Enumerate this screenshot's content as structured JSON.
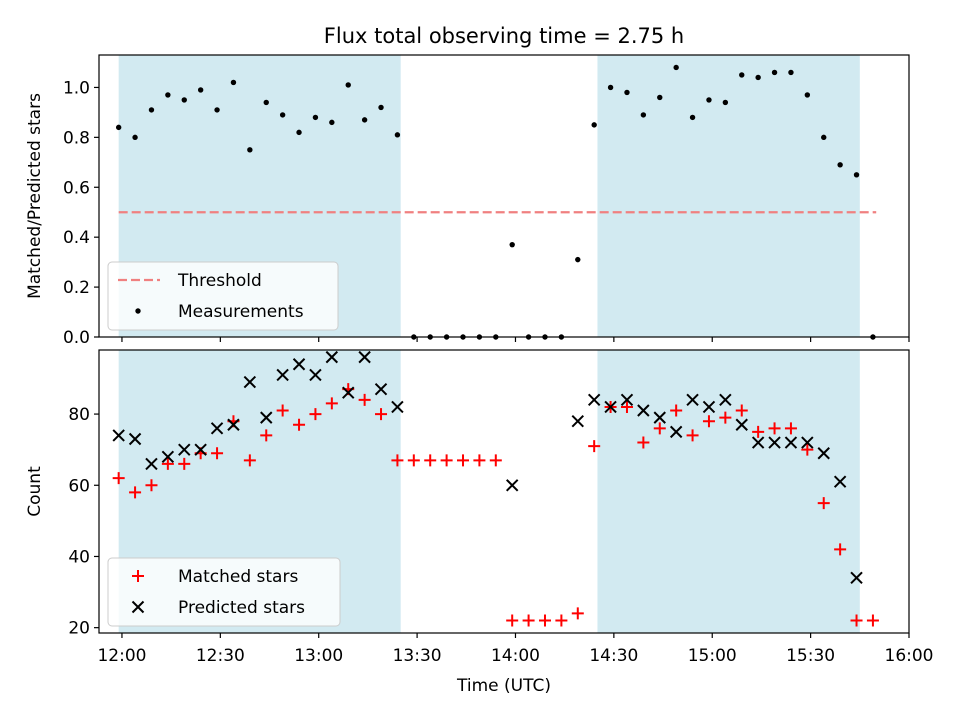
{
  "chart_data": {
    "title": "Flux total observing time = 2.75 h",
    "xlabel": "Time (UTC)",
    "x_ticks": [
      "12:00",
      "12:30",
      "13:00",
      "13:30",
      "14:00",
      "14:30",
      "15:00",
      "15:30",
      "16:00"
    ],
    "x_range": [
      "11:53",
      "16:00"
    ],
    "colors": {
      "shade": "#add8e6",
      "threshold": "#f08080",
      "measurement": "#000000",
      "matched": "#ff0000",
      "predicted": "#000000"
    },
    "shaded_intervals": [
      [
        "11:59",
        "13:25"
      ],
      [
        "14:25",
        "15:45"
      ]
    ],
    "top": {
      "type": "scatter",
      "ylabel": "Matched/Predicted stars",
      "ylim": [
        0,
        1.13
      ],
      "y_ticks": [
        "0.0",
        "0.2",
        "0.4",
        "0.6",
        "0.8",
        "1.0"
      ],
      "threshold": {
        "name": "Threshold",
        "value": 0.5,
        "x_range": [
          "11:59",
          "15:50"
        ]
      },
      "legend": {
        "placement": "lower-left",
        "entries": [
          "Threshold",
          "Measurements"
        ]
      },
      "series": [
        {
          "name": "Measurements",
          "points": [
            [
              "11:59",
              0.84
            ],
            [
              "12:04",
              0.8
            ],
            [
              "12:09",
              0.91
            ],
            [
              "12:14",
              0.97
            ],
            [
              "12:19",
              0.95
            ],
            [
              "12:24",
              0.99
            ],
            [
              "12:29",
              0.91
            ],
            [
              "12:34",
              1.02
            ],
            [
              "12:39",
              0.75
            ],
            [
              "12:44",
              0.94
            ],
            [
              "12:49",
              0.89
            ],
            [
              "12:54",
              0.82
            ],
            [
              "12:59",
              0.88
            ],
            [
              "13:04",
              0.86
            ],
            [
              "13:09",
              1.01
            ],
            [
              "13:14",
              0.87
            ],
            [
              "13:19",
              0.92
            ],
            [
              "13:24",
              0.81
            ],
            [
              "13:29",
              0.0
            ],
            [
              "13:34",
              0.0
            ],
            [
              "13:39",
              0.0
            ],
            [
              "13:44",
              0.0
            ],
            [
              "13:49",
              0.0
            ],
            [
              "13:54",
              0.0
            ],
            [
              "13:59",
              0.37
            ],
            [
              "14:04",
              0.0
            ],
            [
              "14:09",
              0.0
            ],
            [
              "14:14",
              0.0
            ],
            [
              "14:19",
              0.31
            ],
            [
              "14:24",
              0.85
            ],
            [
              "14:29",
              1.0
            ],
            [
              "14:34",
              0.98
            ],
            [
              "14:39",
              0.89
            ],
            [
              "14:44",
              0.96
            ],
            [
              "14:49",
              1.08
            ],
            [
              "14:54",
              0.88
            ],
            [
              "14:59",
              0.95
            ],
            [
              "15:04",
              0.94
            ],
            [
              "15:09",
              1.05
            ],
            [
              "15:14",
              1.04
            ],
            [
              "15:19",
              1.06
            ],
            [
              "15:24",
              1.06
            ],
            [
              "15:29",
              0.97
            ],
            [
              "15:34",
              0.8
            ],
            [
              "15:39",
              0.69
            ],
            [
              "15:44",
              0.65
            ],
            [
              "15:49",
              0.0
            ]
          ]
        }
      ]
    },
    "bottom": {
      "type": "scatter",
      "ylabel": "Count",
      "ylim": [
        18.5,
        98
      ],
      "y_ticks": [
        "20",
        "40",
        "60",
        "80"
      ],
      "legend": {
        "placement": "lower-left",
        "entries": [
          "Matched stars",
          "Predicted stars"
        ]
      },
      "series": [
        {
          "name": "Matched stars",
          "points": [
            [
              "11:59",
              62
            ],
            [
              "12:04",
              58
            ],
            [
              "12:09",
              60
            ],
            [
              "12:14",
              66
            ],
            [
              "12:19",
              66
            ],
            [
              "12:24",
              69
            ],
            [
              "12:29",
              69
            ],
            [
              "12:34",
              78
            ],
            [
              "12:39",
              67
            ],
            [
              "12:44",
              74
            ],
            [
              "12:49",
              81
            ],
            [
              "12:54",
              77
            ],
            [
              "12:59",
              80
            ],
            [
              "13:04",
              83
            ],
            [
              "13:09",
              87
            ],
            [
              "13:14",
              84
            ],
            [
              "13:19",
              80
            ],
            [
              "13:24",
              67
            ],
            [
              "13:29",
              67
            ],
            [
              "13:34",
              67
            ],
            [
              "13:39",
              67
            ],
            [
              "13:44",
              67
            ],
            [
              "13:49",
              67
            ],
            [
              "13:54",
              67
            ],
            [
              "13:59",
              22
            ],
            [
              "14:04",
              22
            ],
            [
              "14:09",
              22
            ],
            [
              "14:14",
              22
            ],
            [
              "14:19",
              24
            ],
            [
              "14:24",
              71
            ],
            [
              "14:29",
              82
            ],
            [
              "14:34",
              82
            ],
            [
              "14:39",
              72
            ],
            [
              "14:44",
              76
            ],
            [
              "14:49",
              81
            ],
            [
              "14:54",
              74
            ],
            [
              "14:59",
              78
            ],
            [
              "15:04",
              79
            ],
            [
              "15:09",
              81
            ],
            [
              "15:14",
              75
            ],
            [
              "15:19",
              76
            ],
            [
              "15:24",
              76
            ],
            [
              "15:29",
              70
            ],
            [
              "15:34",
              55
            ],
            [
              "15:39",
              42
            ],
            [
              "15:44",
              22
            ],
            [
              "15:49",
              22
            ]
          ]
        },
        {
          "name": "Predicted stars",
          "points": [
            [
              "11:59",
              74
            ],
            [
              "12:04",
              73
            ],
            [
              "12:09",
              66
            ],
            [
              "12:14",
              68
            ],
            [
              "12:19",
              70
            ],
            [
              "12:24",
              70
            ],
            [
              "12:29",
              76
            ],
            [
              "12:34",
              77
            ],
            [
              "12:39",
              89
            ],
            [
              "12:44",
              79
            ],
            [
              "12:49",
              91
            ],
            [
              "12:54",
              94
            ],
            [
              "12:59",
              91
            ],
            [
              "13:04",
              96
            ],
            [
              "13:09",
              86
            ],
            [
              "13:14",
              96
            ],
            [
              "13:19",
              87
            ],
            [
              "13:24",
              82
            ],
            [
              "13:59",
              60
            ],
            [
              "14:19",
              78
            ],
            [
              "14:24",
              84
            ],
            [
              "14:29",
              82
            ],
            [
              "14:34",
              84
            ],
            [
              "14:39",
              81
            ],
            [
              "14:44",
              79
            ],
            [
              "14:49",
              75
            ],
            [
              "14:54",
              84
            ],
            [
              "14:59",
              82
            ],
            [
              "15:04",
              84
            ],
            [
              "15:09",
              77
            ],
            [
              "15:14",
              72
            ],
            [
              "15:19",
              72
            ],
            [
              "15:24",
              72
            ],
            [
              "15:29",
              72
            ],
            [
              "15:34",
              69
            ],
            [
              "15:39",
              61
            ],
            [
              "15:44",
              34
            ]
          ]
        }
      ]
    }
  }
}
